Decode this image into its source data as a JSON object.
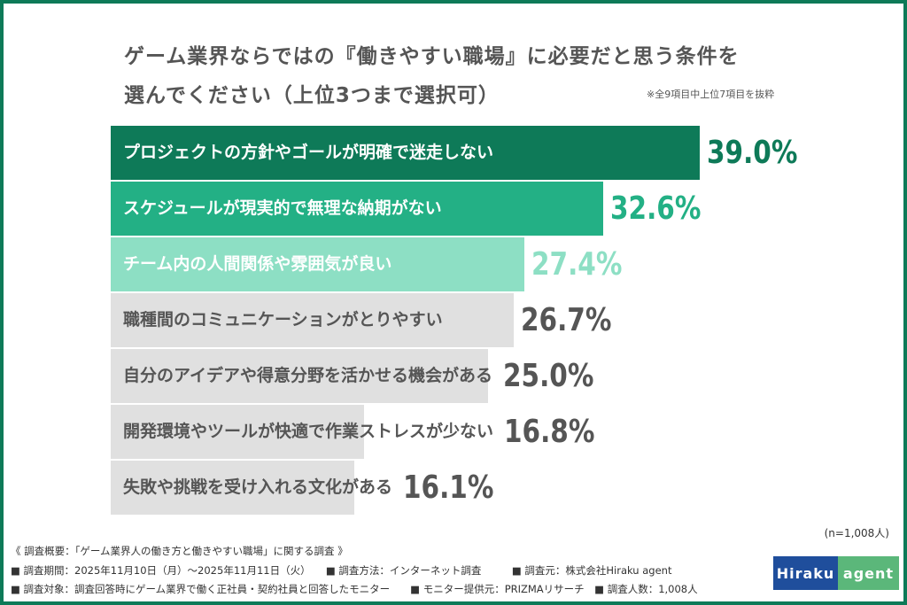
{
  "chart_data": {
    "type": "bar",
    "orientation": "horizontal",
    "title": "ゲーム業界ならではの『働きやすい職場』に必要だと思う条件を選んでください（上位3つまで選択可）",
    "title_lines": [
      "ゲーム業界ならではの『働きやすい職場』に必要だと思う条件を",
      "選んでください（上位3つまで選択可）"
    ],
    "note": "※全9項目中上位7項目を抜粋",
    "categories": [
      "プロジェクトの方針やゴールが明確で迷走しない",
      "スケジュールが現実的で無理な納期がない",
      "チーム内の人間関係や雰囲気が良い",
      "職種間のコミュニケーションがとりやすい",
      "自分のアイデアや得意分野を活かせる機会がある",
      "開発環境やツールが快適で作業ストレスが少ない",
      "失敗や挑戦を受け入れる文化がある"
    ],
    "values": [
      39.0,
      32.6,
      27.4,
      26.7,
      25.0,
      16.8,
      16.1
    ],
    "value_labels": [
      "39.0%",
      "32.6%",
      "27.4%",
      "26.7%",
      "25.0%",
      "16.8%",
      "16.1%"
    ],
    "unit": "%",
    "xlim": [
      0,
      39.0
    ],
    "bar_colors": [
      "#0e7a58",
      "#23b085",
      "#8ddfc4",
      "#e0e0e0",
      "#e0e0e0",
      "#e0e0e0",
      "#e0e0e0"
    ],
    "label_colors": [
      "#ffffff",
      "#ffffff",
      "#ffffff",
      "#555555",
      "#555555",
      "#555555",
      "#555555"
    ],
    "value_colors": [
      "#0e7a58",
      "#23b085",
      "#8ddfc4",
      "#555555",
      "#555555",
      "#555555",
      "#555555"
    ],
    "grid": false
  },
  "sample": "(n=1,008人)",
  "footer": [
    "《 調査概要：「ゲーム業界人の働き方と働きやすい職場」に関する調査 》",
    "■ 調査期間：2025年11月10日（月）～2025年11月11日（火）　　■ 調査方法：インターネット調査　　　■ 調査元：株式会社Hiraku agent",
    "■ 調査対象：調査回答時にゲーム業界で働く正社員・契約社員と回答したモニター　　■ モニター提供元：PRIZMAリサーチ　■ 調査人数：1,008人"
  ],
  "logo": {
    "left": "Hiraku",
    "right": "agent",
    "left_color": "#1f4e9c",
    "right_color": "#5bb77a"
  },
  "frame_color": "#0e7a58"
}
